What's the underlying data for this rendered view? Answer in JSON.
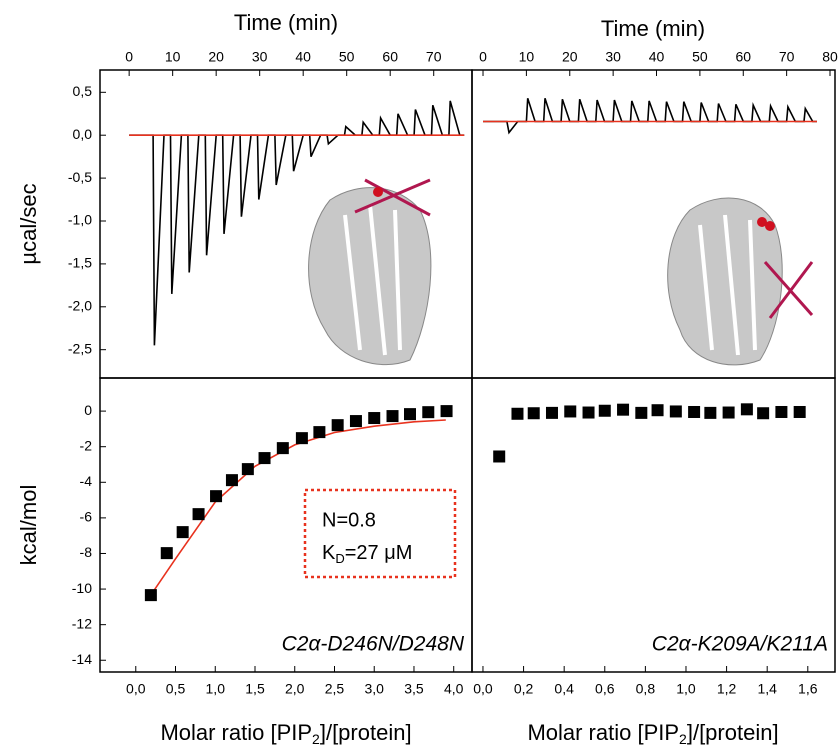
{
  "chart_data": [
    {
      "type": "line",
      "xlabel": "Time (min)",
      "ylabel": "µcal/sec",
      "xlim": [
        -6.7,
        78.8
      ],
      "ylim": [
        -2.83,
        0.76
      ],
      "xticks": [
        0,
        10,
        20,
        30,
        40,
        50,
        60,
        70
      ],
      "yticks": [
        {
          "value": 0.5,
          "label": "0,5"
        },
        {
          "value": 0,
          "label": "0,0"
        },
        {
          "value": -0.5,
          "label": "-0,5"
        },
        {
          "value": -1,
          "label": "-1,0"
        },
        {
          "value": -1.5,
          "label": "-1,5"
        },
        {
          "value": -2,
          "label": "-2,0"
        },
        {
          "value": -2.5,
          "label": "-2,5"
        }
      ],
      "series": [
        {
          "color": "#000000",
          "x": [
            0,
            5.5,
            5.8,
            8,
            9.5,
            9.8,
            12,
            13.5,
            13.8,
            16,
            17.5,
            17.8,
            20,
            21.5,
            21.8,
            24,
            25.5,
            25.8,
            28,
            29.5,
            29.8,
            32,
            33.5,
            33.8,
            36,
            37.5,
            37.8,
            40,
            41.5,
            41.8,
            44,
            45.5,
            45.8,
            48,
            49.5,
            49.8,
            52,
            53.5,
            53.8,
            56,
            57.5,
            57.8,
            60,
            61.5,
            61.8,
            64,
            65.5,
            65.8,
            68,
            69.5,
            69.8,
            72,
            73.5,
            73.8,
            76,
            77
          ],
          "values": [
            0,
            0,
            -2.45,
            0,
            0,
            -1.85,
            0,
            0,
            -1.6,
            0,
            0,
            -1.4,
            0,
            0,
            -1.15,
            0,
            0,
            -0.95,
            0,
            0,
            -0.75,
            0,
            0,
            -0.58,
            0,
            0,
            -0.42,
            0,
            0,
            -0.25,
            0,
            0,
            -0.1,
            0,
            0,
            0.1,
            0,
            0,
            0.15,
            0,
            0,
            0.2,
            0,
            0,
            0.25,
            0,
            0,
            0.3,
            0,
            0,
            0.35,
            0,
            0,
            0.4,
            0,
            0
          ]
        },
        {
          "color": "#e8321e",
          "x": [
            0,
            77
          ],
          "values": [
            0,
            0
          ]
        }
      ]
    },
    {
      "type": "line",
      "xlabel": "Time (min)",
      "xlim": [
        -2.54,
        81.15
      ],
      "ylim": [
        -2.83,
        0.76
      ],
      "xticks": [
        0,
        10,
        20,
        30,
        40,
        50,
        60,
        70,
        80
      ],
      "series": [
        {
          "color": "#000000",
          "x": [
            0,
            5.5,
            6,
            8,
            10,
            10.3,
            12,
            14,
            14.3,
            16,
            18,
            18.3,
            20,
            22,
            22.3,
            24,
            26,
            26.3,
            28,
            30,
            30.3,
            32,
            34,
            34.3,
            36,
            38,
            38.3,
            40,
            42,
            42.3,
            44,
            46,
            46.3,
            48,
            50,
            50.3,
            52,
            54,
            54.3,
            56,
            58,
            58.3,
            60,
            62,
            62.3,
            64,
            66,
            66.3,
            68,
            70,
            70.3,
            72,
            74,
            74.3,
            76,
            77
          ],
          "values": [
            0.16,
            0.16,
            0.03,
            0.16,
            0.16,
            0.43,
            0.16,
            0.16,
            0.43,
            0.16,
            0.16,
            0.42,
            0.16,
            0.16,
            0.42,
            0.16,
            0.16,
            0.41,
            0.16,
            0.16,
            0.41,
            0.16,
            0.16,
            0.4,
            0.16,
            0.16,
            0.4,
            0.16,
            0.16,
            0.39,
            0.16,
            0.16,
            0.39,
            0.16,
            0.16,
            0.38,
            0.16,
            0.16,
            0.37,
            0.16,
            0.16,
            0.36,
            0.16,
            0.16,
            0.35,
            0.16,
            0.16,
            0.34,
            0.16,
            0.16,
            0.33,
            0.16,
            0.16,
            0.31,
            0.16,
            0.16
          ]
        },
        {
          "color": "#e8321e",
          "x": [
            0,
            77
          ],
          "values": [
            0.16,
            0.16
          ]
        }
      ]
    },
    {
      "type": "scatter",
      "xlabel": {
        "pre": "Molar ratio [PIP",
        "sub": "2",
        "post": "]/[protein]"
      },
      "ylabel": "kcal/mol",
      "xlim": [
        -0.45,
        4.23
      ],
      "ylim": [
        -14.66,
        1.86
      ],
      "xticks": [
        {
          "value": 0,
          "label": "0,0"
        },
        {
          "value": 0.5,
          "label": "0,5"
        },
        {
          "value": 1,
          "label": "1,0"
        },
        {
          "value": 1.5,
          "label": "1,5"
        },
        {
          "value": 2,
          "label": "2,0"
        },
        {
          "value": 2.5,
          "label": "2,5"
        },
        {
          "value": 3,
          "label": "3,0"
        },
        {
          "value": 3.5,
          "label": "3,5"
        },
        {
          "value": 4,
          "label": "4,0"
        }
      ],
      "yticks": [
        0,
        -2,
        -4,
        -6,
        -8,
        -10,
        -12,
        -14
      ],
      "color": "#000000",
      "x": [
        0.19,
        0.39,
        0.59,
        0.79,
        1.01,
        1.21,
        1.41,
        1.62,
        1.85,
        2.09,
        2.31,
        2.54,
        2.77,
        3.0,
        3.23,
        3.45,
        3.68,
        3.91
      ],
      "values": [
        -10.34,
        -7.98,
        -6.8,
        -5.79,
        -4.78,
        -3.88,
        -3.26,
        -2.64,
        -2.08,
        -1.52,
        -1.18,
        -0.79,
        -0.56,
        -0.39,
        -0.28,
        -0.17,
        -0.06,
        0
      ],
      "fit": {
        "color": "#e8321e",
        "x": [
          0.15,
          0.5,
          1.0,
          1.5,
          2.0,
          2.5,
          3.0,
          3.5,
          3.9
        ],
        "values": [
          -10.6,
          -8.3,
          -5.1,
          -3.1,
          -1.9,
          -1.2,
          -0.85,
          -0.6,
          -0.5
        ]
      },
      "annotation": {
        "n": "N=0.8",
        "kd": "K",
        "kd_sub": "D",
        "kd_rest": "=27 μM"
      },
      "label": "C2α-D246N/D248N"
    },
    {
      "type": "scatter",
      "xlabel": {
        "pre": "Molar ratio [PIP",
        "sub": "2",
        "post": "]/[protein]"
      },
      "xlim": [
        -0.054,
        1.734
      ],
      "ylim": [
        -14.66,
        1.86
      ],
      "xticks": [
        {
          "value": 0,
          "label": "0,0"
        },
        {
          "value": 0.2,
          "label": "0,2"
        },
        {
          "value": 0.4,
          "label": "0,4"
        },
        {
          "value": 0.6,
          "label": "0,6"
        },
        {
          "value": 0.8,
          "label": "0,8"
        },
        {
          "value": 1,
          "label": "1,0"
        },
        {
          "value": 1.2,
          "label": "1,2"
        },
        {
          "value": 1.4,
          "label": "1,4"
        },
        {
          "value": 1.6,
          "label": "1,6"
        }
      ],
      "color": "#000000",
      "x": [
        0.08,
        0.17,
        0.25,
        0.34,
        0.43,
        0.52,
        0.6,
        0.69,
        0.78,
        0.86,
        0.95,
        1.04,
        1.12,
        1.21,
        1.3,
        1.38,
        1.47,
        1.56
      ],
      "values": [
        -2.55,
        -0.15,
        -0.12,
        -0.1,
        -0.02,
        -0.08,
        0.02,
        0.08,
        -0.1,
        0.05,
        -0.02,
        -0.05,
        -0.1,
        -0.08,
        0.1,
        -0.12,
        -0.05,
        -0.05
      ],
      "label": "C2α-K209A/K211A"
    }
  ]
}
